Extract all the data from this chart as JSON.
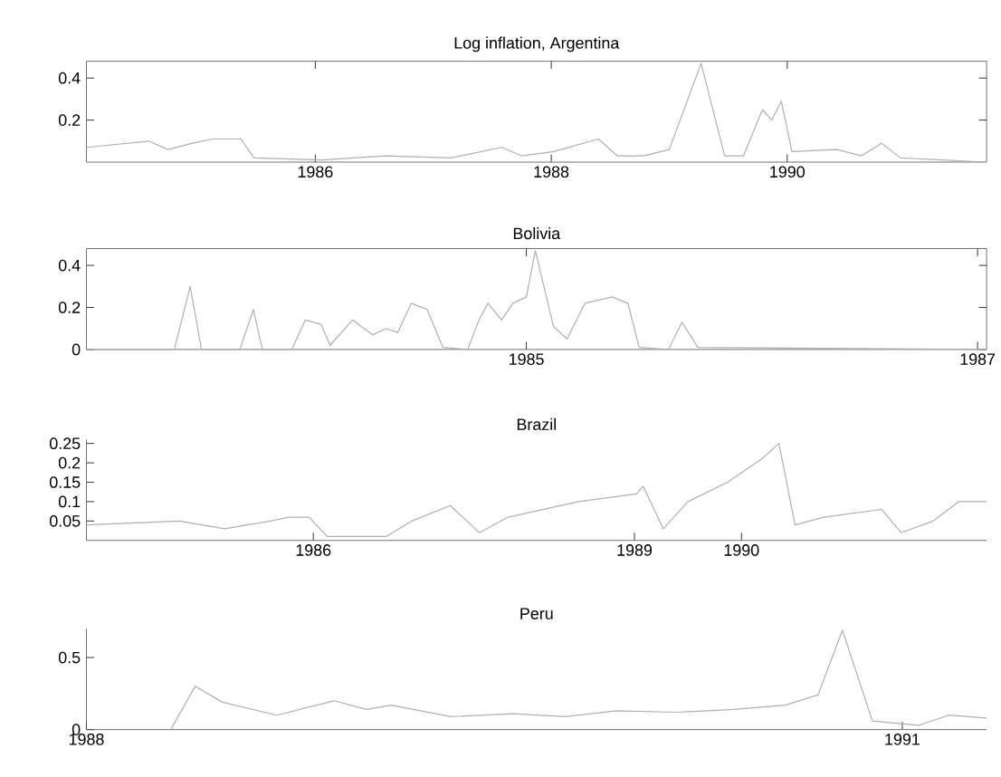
{
  "chart_data": [
    {
      "type": "line",
      "title": "Log inflation, Argentina",
      "color": "#b0b0b0",
      "xlim": [
        1984.06,
        1991.69
      ],
      "ylim": [
        0,
        0.48
      ],
      "xticks": [
        1986,
        1988,
        1990
      ],
      "yticks": [
        0.2,
        0.4
      ],
      "x": [
        1984.06,
        1984.59,
        1984.75,
        1984.96,
        1985.13,
        1985.37,
        1985.48,
        1986.05,
        1986.6,
        1987.15,
        1987.58,
        1987.75,
        1988.02,
        1988.4,
        1988.56,
        1988.78,
        1989.0,
        1989.27,
        1989.47,
        1989.63,
        1989.79,
        1989.87,
        1989.95,
        1990.04,
        1990.42,
        1990.63,
        1990.8,
        1990.96,
        1991.69
      ],
      "values": [
        0.07,
        0.1,
        0.06,
        0.09,
        0.11,
        0.11,
        0.02,
        0.01,
        0.03,
        0.02,
        0.07,
        0.03,
        0.05,
        0.11,
        0.03,
        0.03,
        0.06,
        0.47,
        0.03,
        0.03,
        0.25,
        0.2,
        0.29,
        0.05,
        0.06,
        0.03,
        0.09,
        0.02,
        0
      ]
    },
    {
      "type": "line",
      "title": "Bolivia",
      "color": "#b0b0b0",
      "xlim": [
        1983.05,
        1987.04
      ],
      "ylim": [
        0,
        0.48
      ],
      "xticks": [
        1985,
        1987
      ],
      "yticks": [
        0,
        0.2,
        0.4
      ],
      "x": [
        1983.05,
        1983.44,
        1983.51,
        1983.56,
        1983.73,
        1983.79,
        1983.83,
        1983.96,
        1984.02,
        1984.09,
        1984.13,
        1984.23,
        1984.32,
        1984.38,
        1984.43,
        1984.49,
        1984.56,
        1984.63,
        1984.74,
        1984.79,
        1984.83,
        1984.89,
        1984.94,
        1985.0,
        1985.04,
        1985.12,
        1985.18,
        1985.26,
        1985.38,
        1985.45,
        1985.5,
        1985.63,
        1985.69,
        1985.76,
        1987.04
      ],
      "values": [
        0,
        0,
        0.3,
        0,
        0,
        0.19,
        0,
        0,
        0.14,
        0.12,
        0.02,
        0.14,
        0.07,
        0.1,
        0.08,
        0.22,
        0.19,
        0.01,
        0,
        0.14,
        0.22,
        0.14,
        0.22,
        0.25,
        0.47,
        0.11,
        0.05,
        0.22,
        0.25,
        0.22,
        0.01,
        0,
        0.13,
        0.01,
        0
      ]
    },
    {
      "type": "line",
      "title": "Brazil",
      "color": "#b0b0b0",
      "xlim": [
        1983.88,
        1992.29
      ],
      "ylim": [
        0,
        0.26
      ],
      "xticks": [
        1986,
        1989,
        1990
      ],
      "yticks": [
        0.05,
        0.1,
        0.15,
        0.2,
        0.25
      ],
      "x": [
        1983.88,
        1984.75,
        1985.17,
        1985.6,
        1985.77,
        1985.96,
        1986.13,
        1986.68,
        1986.92,
        1987.28,
        1987.55,
        1987.82,
        1988.48,
        1989.02,
        1989.08,
        1989.27,
        1989.5,
        1989.87,
        1990.19,
        1990.35,
        1990.5,
        1990.77,
        1991.31,
        1991.49,
        1991.79,
        1992.03,
        1992.29
      ],
      "values": [
        0.04,
        0.05,
        0.03,
        0.05,
        0.06,
        0.06,
        0.01,
        0.01,
        0.05,
        0.09,
        0.02,
        0.06,
        0.1,
        0.12,
        0.14,
        0.03,
        0.1,
        0.15,
        0.21,
        0.25,
        0.04,
        0.06,
        0.08,
        0.02,
        0.05,
        0.1,
        0.1
      ]
    },
    {
      "type": "line",
      "title": "Peru",
      "color": "#b0b0b0",
      "xlim": [
        1988,
        1991.31
      ],
      "ylim": [
        0,
        0.7
      ],
      "xticks": [
        1988,
        1991
      ],
      "yticks": [
        0,
        0.5
      ],
      "x": [
        1988.31,
        1988.4,
        1988.5,
        1988.7,
        1988.91,
        1989.03,
        1989.12,
        1989.34,
        1989.57,
        1989.76,
        1989.95,
        1990.17,
        1990.38,
        1990.57,
        1990.69,
        1990.78,
        1990.89,
        1991.06,
        1991.17,
        1991.31
      ],
      "values": [
        0,
        0.3,
        0.19,
        0.1,
        0.2,
        0.14,
        0.17,
        0.09,
        0.11,
        0.09,
        0.13,
        0.12,
        0.14,
        0.17,
        0.24,
        0.69,
        0.06,
        0.03,
        0.1,
        0.08
      ]
    }
  ]
}
